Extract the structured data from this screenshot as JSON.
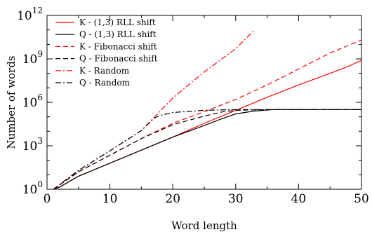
{
  "chart_data": {
    "type": "line",
    "xlabel": "Word length",
    "ylabel": "Number of words",
    "xlim": [
      0,
      50
    ],
    "ylim_exponent": [
      0,
      12
    ],
    "yscale": "log",
    "grid": false,
    "legend_position": "top-left",
    "x_ticks": [
      {
        "value": 0,
        "label": "0"
      },
      {
        "value": 10,
        "label": "10"
      },
      {
        "value": 20,
        "label": "20"
      },
      {
        "value": 30,
        "label": "30"
      },
      {
        "value": 40,
        "label": "40"
      },
      {
        "value": 50,
        "label": "50"
      }
    ],
    "y_ticks": [
      {
        "exp": 0,
        "base": "10",
        "sup": "0"
      },
      {
        "exp": 3,
        "base": "10",
        "sup": "3"
      },
      {
        "exp": 6,
        "base": "10",
        "sup": "6"
      },
      {
        "exp": 9,
        "base": "10",
        "sup": "9"
      },
      {
        "exp": 12,
        "base": "10",
        "sup": "12"
      }
    ],
    "series": [
      {
        "name": "K - (1,3) RLL shift",
        "color": "#ff0000",
        "dash": "solid",
        "log10_values": [
          [
            1,
            0
          ],
          [
            2,
            0.15
          ],
          [
            5,
            0.9
          ],
          [
            10,
            1.8
          ],
          [
            15,
            2.7
          ],
          [
            20,
            3.6
          ],
          [
            25,
            4.55
          ],
          [
            30,
            5.45
          ],
          [
            35,
            6.35
          ],
          [
            40,
            7.2
          ],
          [
            45,
            8.0
          ],
          [
            48,
            8.5
          ],
          [
            50,
            8.9
          ]
        ]
      },
      {
        "name": "Q - (1,3) RLL shift",
        "color": "#000000",
        "dash": "solid",
        "log10_values": [
          [
            1,
            0
          ],
          [
            2,
            0.15
          ],
          [
            5,
            0.9
          ],
          [
            10,
            1.8
          ],
          [
            15,
            2.7
          ],
          [
            20,
            3.6
          ],
          [
            25,
            4.4
          ],
          [
            28,
            4.9
          ],
          [
            30,
            5.2
          ],
          [
            33,
            5.4
          ],
          [
            36,
            5.5
          ],
          [
            40,
            5.5
          ],
          [
            50,
            5.5
          ]
        ]
      },
      {
        "name": "K - Fibonacci shift",
        "color": "#ff0000",
        "dash": "dashed",
        "log10_values": [
          [
            1,
            0
          ],
          [
            5,
            1.2
          ],
          [
            10,
            2.35
          ],
          [
            15,
            3.5
          ],
          [
            20,
            4.55
          ],
          [
            25,
            5.35
          ],
          [
            30,
            6.2
          ],
          [
            35,
            7.2
          ],
          [
            40,
            8.3
          ],
          [
            45,
            9.4
          ],
          [
            50,
            10.3
          ]
        ]
      },
      {
        "name": "Q - Fibonacci shift",
        "color": "#000000",
        "dash": "dashed",
        "log10_values": [
          [
            1,
            0
          ],
          [
            5,
            1.2
          ],
          [
            10,
            2.35
          ],
          [
            15,
            3.5
          ],
          [
            20,
            4.45
          ],
          [
            25,
            5.05
          ],
          [
            28,
            5.35
          ],
          [
            30,
            5.45
          ],
          [
            35,
            5.5
          ],
          [
            50,
            5.5
          ]
        ]
      },
      {
        "name": "K - Random",
        "color": "#ff0000",
        "dash": "dashdot",
        "log10_values": [
          [
            1,
            0
          ],
          [
            5,
            1.3
          ],
          [
            10,
            2.65
          ],
          [
            15,
            4.05
          ],
          [
            20,
            6.3
          ],
          [
            25,
            8.1
          ],
          [
            30,
            9.7
          ],
          [
            33,
            11.0
          ]
        ]
      },
      {
        "name": "Q - Random",
        "color": "#000000",
        "dash": "dashdot",
        "log10_values": [
          [
            1,
            0
          ],
          [
            5,
            1.3
          ],
          [
            10,
            2.65
          ],
          [
            15,
            4.05
          ],
          [
            17,
            4.9
          ],
          [
            18,
            5.1
          ],
          [
            20,
            5.3
          ],
          [
            25,
            5.45
          ],
          [
            30,
            5.5
          ],
          [
            50,
            5.5
          ]
        ]
      }
    ]
  }
}
